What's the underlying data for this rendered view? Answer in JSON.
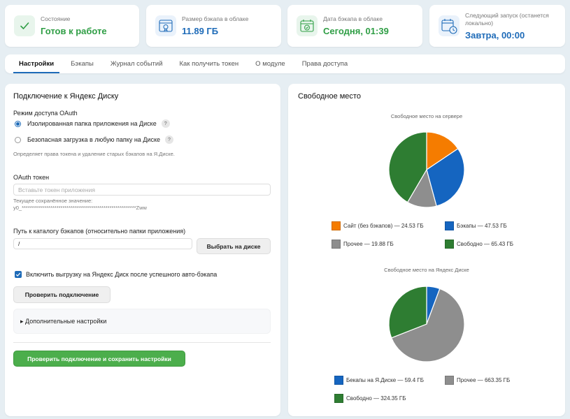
{
  "status_cards": [
    {
      "label": "Состояние",
      "value": "Готов к работе",
      "icon": "check-icon"
    },
    {
      "label": "Размер бэкапа в облаке",
      "value": "11.89 ГБ",
      "icon": "archive-icon"
    },
    {
      "label": "Дата бэкапа в облаке",
      "value": "Сегодня, 01:39",
      "icon": "calendar-check-icon"
    },
    {
      "label": "Следующий запуск (останется локально)",
      "value": "Завтра, 00:00",
      "icon": "calendar-clock-icon"
    }
  ],
  "tabs": [
    "Настройки",
    "Бэкапы",
    "Журнал событий",
    "Как получить токен",
    "О модуле",
    "Права доступа"
  ],
  "active_tab": "Настройки",
  "settings": {
    "title": "Подключение к Яндекс Диску",
    "oauth_mode_label": "Режим доступа OAuth",
    "option_isolated": "Изолированная папка приложения на Диске",
    "option_any": "Безопасная загрузка в любую папку на Диске",
    "help_mark": "?",
    "mode_hint": "Определяет права токена и удаление старых бэкапов на Я.Диске.",
    "token_label": "OAuth токен",
    "token_placeholder": "Вставьте токен приложения",
    "saved_value_label": "Текущее сохранённое значение:",
    "saved_value": "y0_********************************************************Zww",
    "path_label": "Путь к каталогу бэкапов (относительно папки приложения)",
    "path_value": "/",
    "choose_button": "Выбрать на диске",
    "enable_upload_label": "Включить выгрузку на Яндекс Диск после успешного авто-бэкапа",
    "check_button": "Проверить подключение",
    "advanced_label": "▸ Дополнительные настройки",
    "save_button": "Проверить подключение и сохранить настройки"
  },
  "free_space": {
    "title": "Свободное место"
  },
  "colors": {
    "orange": "#f57c00",
    "blue": "#1565c0",
    "gray": "#8e8e8e",
    "green": "#2e7d32",
    "accent": "#1e6bb8"
  },
  "chart_data": [
    {
      "type": "pie",
      "title": "Свободное место на сервере",
      "legend": "bottom",
      "slices": [
        {
          "name": "Сайт (без бэкапов)",
          "value": 24.53,
          "label": "Сайт (без бэкапов) — 24.53 ГБ",
          "color": "#f57c00"
        },
        {
          "name": "Бэкапы",
          "value": 47.53,
          "label": "Бэкапы — 47.53 ГБ",
          "color": "#1565c0"
        },
        {
          "name": "Прочее",
          "value": 19.88,
          "label": "Прочее — 19.88 ГБ",
          "color": "#8e8e8e"
        },
        {
          "name": "Свободно",
          "value": 65.43,
          "label": "Свободно — 65.43 ГБ",
          "color": "#2e7d32"
        }
      ]
    },
    {
      "type": "pie",
      "title": "Свободное место на Яндекс Диске",
      "legend": "bottom",
      "slices": [
        {
          "name": "Бекапы на Я.Диске",
          "value": 59.4,
          "label": "Бекапы на Я.Диске — 59.4 ГБ",
          "color": "#1565c0"
        },
        {
          "name": "Прочее",
          "value": 663.35,
          "label": "Прочее — 663.35 ГБ",
          "color": "#8e8e8e"
        },
        {
          "name": "Свободно",
          "value": 324.35,
          "label": "Свободно — 324.35 ГБ",
          "color": "#2e7d32"
        }
      ]
    }
  ]
}
